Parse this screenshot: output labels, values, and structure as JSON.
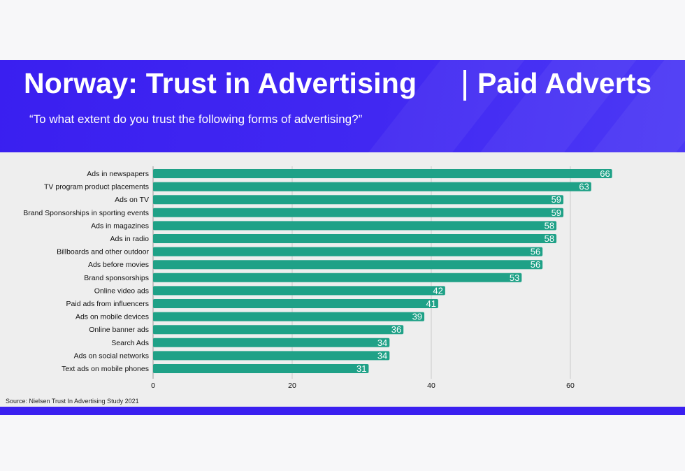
{
  "header": {
    "title": "Norway: Trust in Advertising",
    "title_right": "Paid Adverts",
    "subtitle": "“To what extent do you trust the following forms of advertising?”",
    "background_color": "#3a1ff0"
  },
  "footer": {
    "source": "Source: Nielsen Trust In Advertising Study 2021"
  },
  "chart_data": {
    "type": "bar",
    "orientation": "horizontal",
    "categories": [
      "Ads in newspapers",
      "TV program product placements",
      "Ads on TV",
      "Brand Sponsorships in sporting events",
      "Ads in magazines",
      "Ads in radio",
      "Billboards and other outdoor",
      "Ads before movies",
      "Brand sponsorships",
      "Online video ads",
      "Paid ads from influencers",
      "Ads on mobile devices",
      "Online banner ads",
      "Search Ads",
      "Ads on social networks",
      "Text ads on mobile phones"
    ],
    "values": [
      66,
      63,
      59,
      59,
      58,
      58,
      56,
      56,
      53,
      42,
      41,
      39,
      36,
      34,
      34,
      31
    ],
    "xlim": [
      0,
      70
    ],
    "xticks": [
      0,
      20,
      40,
      60
    ],
    "grid": true,
    "data_labels": true,
    "bar_color": "#1fa187",
    "label_color": "#ffffff",
    "title": "",
    "xlabel": "",
    "ylabel": ""
  }
}
